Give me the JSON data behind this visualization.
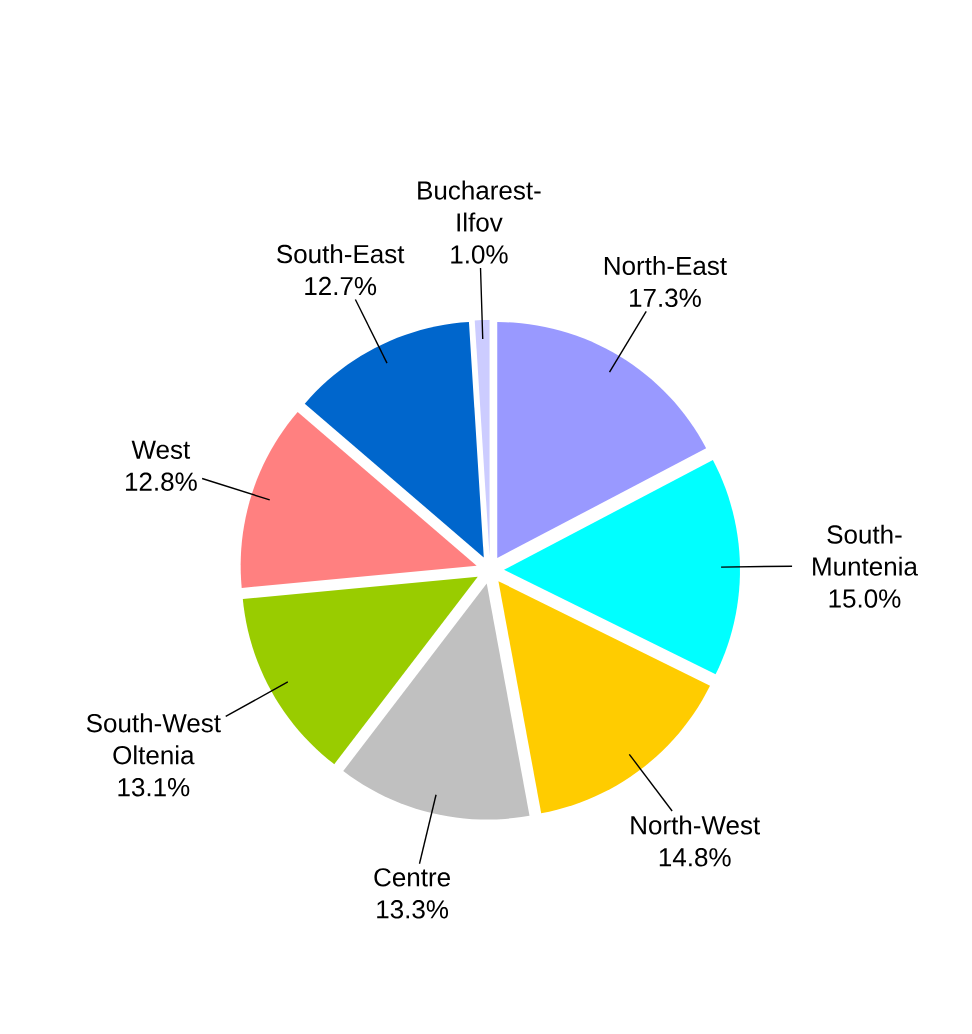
{
  "chart_data": {
    "type": "pie",
    "categories": [
      "North-East",
      "South-Muntenia",
      "North-West",
      "Centre",
      "South-West Oltenia",
      "West",
      "South-East",
      "Bucharest-Ilfov"
    ],
    "values": [
      17.3,
      15.0,
      14.8,
      13.3,
      13.1,
      12.8,
      12.7,
      1.0
    ],
    "colors": [
      "#9999ff",
      "#00ffff",
      "#ffcc00",
      "#c0c0c0",
      "#99cc00",
      "#ff8080",
      "#0066cc",
      "#ccccff"
    ],
    "value_labels": [
      "17.3%",
      "15.0%",
      "14.8%",
      "13.3%",
      "13.1%",
      "12.8%",
      "12.7%",
      "1.0%"
    ]
  }
}
